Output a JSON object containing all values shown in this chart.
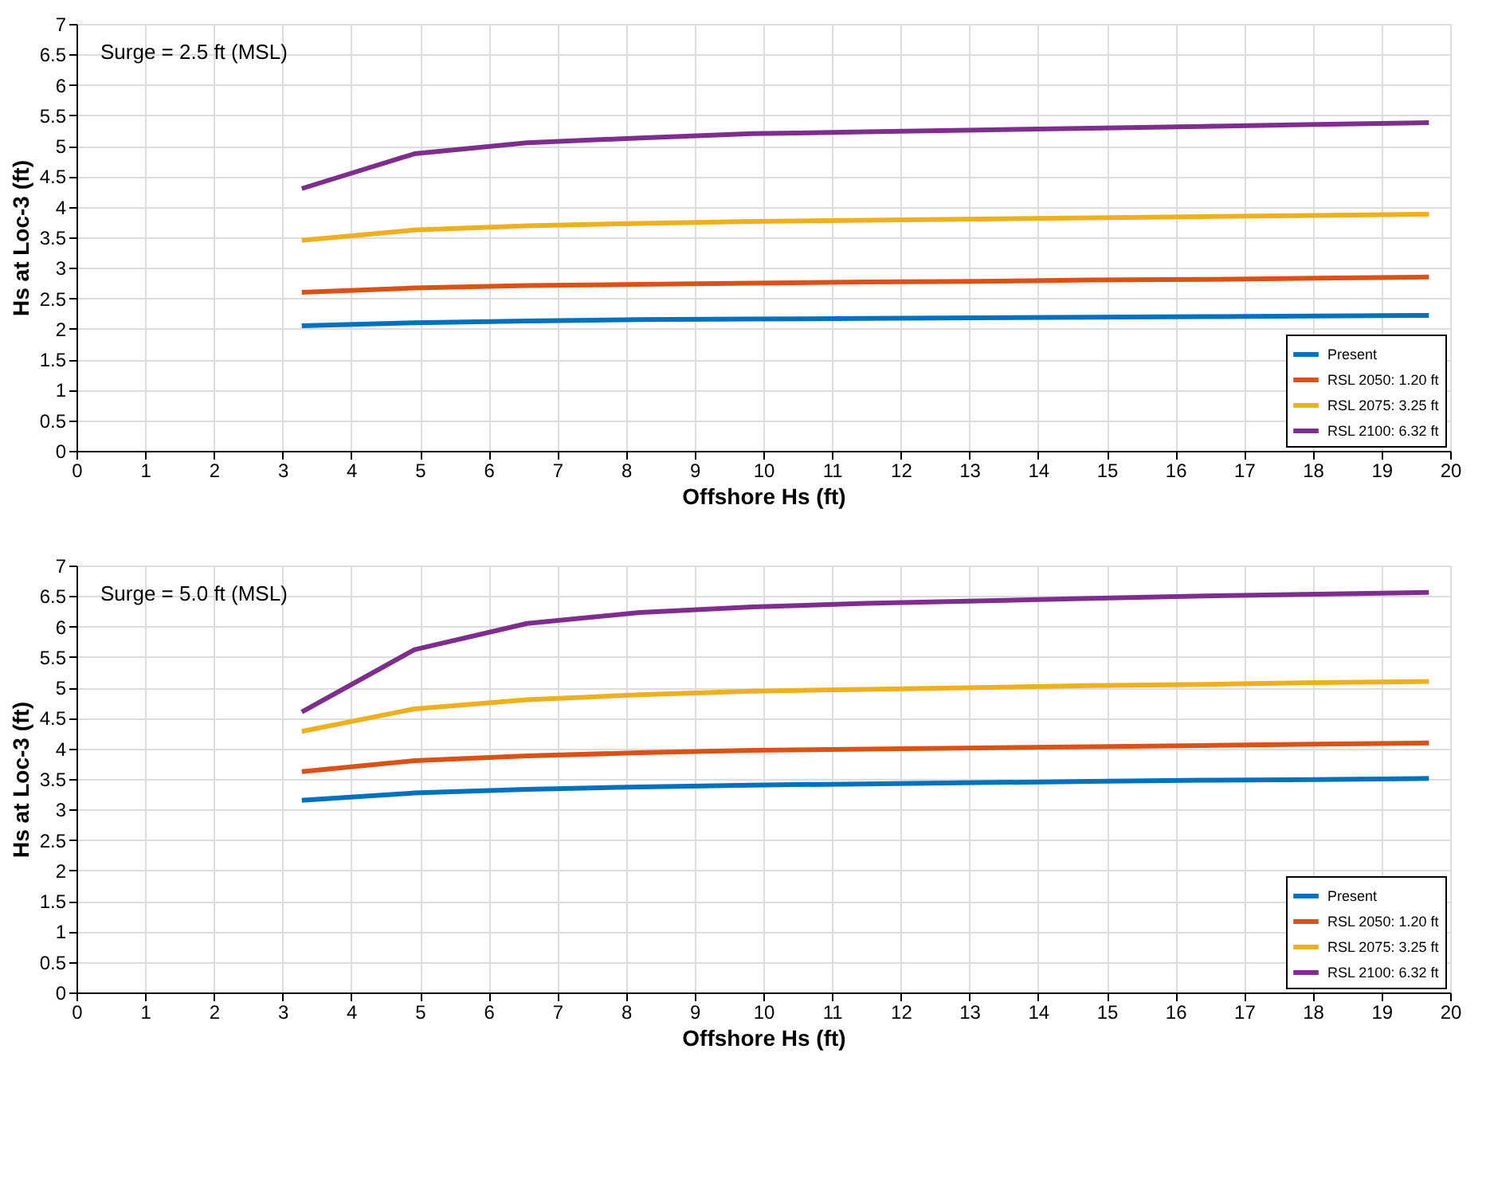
{
  "chart_data": [
    {
      "type": "line",
      "xlabel": "Offshore Hs (ft)",
      "ylabel": "Hs at Loc-3 (ft)",
      "annotations": [
        "Surge = 2.5 ft (MSL)"
      ],
      "x": [
        3.28,
        4.92,
        6.56,
        8.2,
        9.84,
        11.48,
        13.12,
        14.76,
        16.4,
        18.04,
        19.69
      ],
      "series": [
        {
          "name": "Present",
          "color": "#0072bd",
          "values": [
            2.05,
            2.1,
            2.13,
            2.15,
            2.16,
            2.17,
            2.18,
            2.19,
            2.2,
            2.21,
            2.22
          ]
        },
        {
          "name": "RSL 2050: 1.20 ft",
          "color": "#d95319",
          "values": [
            2.6,
            2.67,
            2.71,
            2.73,
            2.75,
            2.77,
            2.78,
            2.8,
            2.81,
            2.83,
            2.85
          ]
        },
        {
          "name": "RSL 2075: 3.25 ft",
          "color": "#edb120",
          "values": [
            3.45,
            3.62,
            3.69,
            3.73,
            3.76,
            3.78,
            3.8,
            3.82,
            3.84,
            3.86,
            3.88
          ]
        },
        {
          "name": "RSL 2100: 6.32 ft",
          "color": "#7e2f8e",
          "values": [
            4.3,
            4.87,
            5.05,
            5.13,
            5.2,
            5.23,
            5.26,
            5.29,
            5.32,
            5.35,
            5.38
          ]
        }
      ],
      "xlim": [
        0,
        20
      ],
      "xticks": [
        0,
        1,
        2,
        3,
        4,
        5,
        6,
        7,
        8,
        9,
        10,
        11,
        12,
        13,
        14,
        15,
        16,
        17,
        18,
        19,
        20
      ],
      "ylim": [
        0,
        7
      ],
      "yticks": [
        0,
        0.5,
        1,
        1.5,
        2,
        2.5,
        3,
        3.5,
        4,
        4.5,
        5,
        5.5,
        6,
        6.5,
        7
      ],
      "grid": true,
      "legend": "bottom right",
      "line_style": "solid"
    },
    {
      "type": "line",
      "xlabel": "Offshore Hs (ft)",
      "ylabel": "Hs at Loc-3 (ft)",
      "annotations": [
        "Surge = 5.0 ft (MSL)"
      ],
      "x": [
        3.28,
        4.92,
        6.56,
        8.2,
        9.84,
        11.48,
        13.12,
        14.76,
        16.4,
        18.04,
        19.69
      ],
      "series": [
        {
          "name": "Present",
          "color": "#0072bd",
          "values": [
            3.15,
            3.27,
            3.33,
            3.37,
            3.4,
            3.42,
            3.44,
            3.46,
            3.48,
            3.49,
            3.51
          ]
        },
        {
          "name": "RSL 2050: 1.20 ft",
          "color": "#d95319",
          "values": [
            3.62,
            3.8,
            3.88,
            3.93,
            3.97,
            3.99,
            4.01,
            4.03,
            4.05,
            4.07,
            4.09
          ]
        },
        {
          "name": "RSL 2075: 3.25 ft",
          "color": "#edb120",
          "values": [
            4.28,
            4.65,
            4.8,
            4.88,
            4.94,
            4.97,
            5.0,
            5.03,
            5.05,
            5.08,
            5.1
          ]
        },
        {
          "name": "RSL 2100: 6.32 ft",
          "color": "#7e2f8e",
          "values": [
            4.6,
            5.62,
            6.05,
            6.23,
            6.32,
            6.38,
            6.42,
            6.46,
            6.5,
            6.53,
            6.56
          ]
        }
      ],
      "xlim": [
        0,
        20
      ],
      "xticks": [
        0,
        1,
        2,
        3,
        4,
        5,
        6,
        7,
        8,
        9,
        10,
        11,
        12,
        13,
        14,
        15,
        16,
        17,
        18,
        19,
        20
      ],
      "ylim": [
        0,
        7
      ],
      "yticks": [
        0,
        0.5,
        1,
        1.5,
        2,
        2.5,
        3,
        3.5,
        4,
        4.5,
        5,
        5.5,
        6,
        6.5,
        7
      ],
      "grid": true,
      "legend": "bottom right",
      "line_style": "solid"
    }
  ]
}
